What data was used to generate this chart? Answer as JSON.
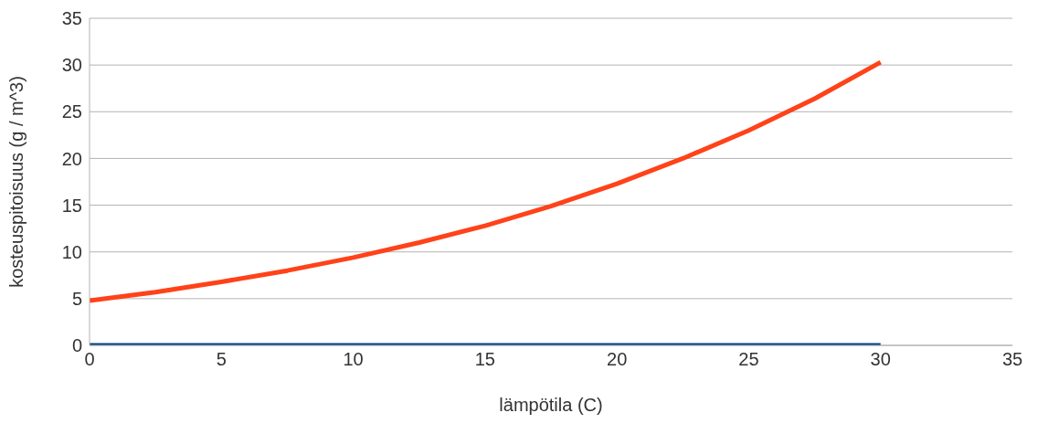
{
  "chart_data": {
    "type": "line",
    "xlabel": "lämpötila (C)",
    "ylabel": "kosteuspitoisuus (g / m^3)",
    "x": [
      0,
      2.5,
      5,
      7.5,
      10,
      12.5,
      15,
      17.5,
      20,
      22.5,
      25,
      27.5,
      30
    ],
    "series": [
      {
        "color": "#ff4219",
        "values": [
          4.8,
          5.7,
          6.8,
          8.0,
          9.4,
          11.0,
          12.8,
          14.9,
          17.3,
          20.0,
          23.0,
          26.4,
          30.3
        ]
      },
      {
        "color": "#004586",
        "values": [
          0,
          0,
          0,
          0,
          0,
          0,
          0,
          0,
          0,
          0,
          0,
          0,
          0
        ]
      }
    ],
    "xlim": [
      0,
      35
    ],
    "xticks": [
      0,
      5,
      10,
      15,
      20,
      25,
      30,
      35
    ],
    "ylim": [
      0,
      35
    ],
    "yticks": [
      0,
      5,
      10,
      15,
      20,
      25,
      30,
      35
    ],
    "grid": "y",
    "marker": "none",
    "line_style": "solid"
  }
}
